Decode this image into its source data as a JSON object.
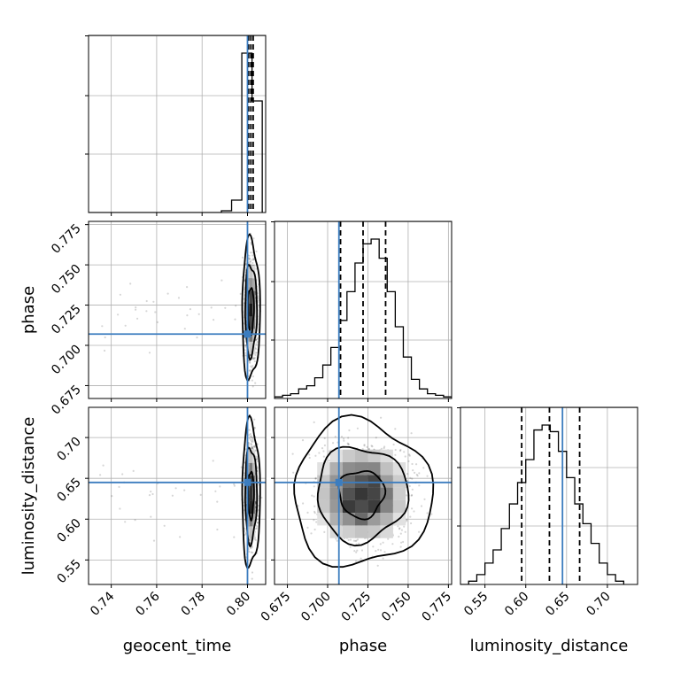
{
  "chart_data": {
    "type": "corner",
    "parameters": [
      "geocent_time",
      "phase",
      "luminosity_distance"
    ],
    "truth_color": "#3c7dbf",
    "truths": {
      "geocent_time": 0.8,
      "phase": 0.707,
      "luminosity_distance": 0.645
    },
    "axes": {
      "geocent_time": {
        "range": [
          0.73,
          0.808
        ],
        "ticks": [
          0.74,
          0.76,
          0.78,
          0.8
        ],
        "tick_labels": [
          "0.74",
          "0.76",
          "0.78",
          "0.80"
        ]
      },
      "phase": {
        "range": [
          0.667,
          0.777
        ],
        "ticks": [
          0.675,
          0.7,
          0.725,
          0.75,
          0.775
        ],
        "tick_labels": [
          "0.675",
          "0.700",
          "0.725",
          "0.750",
          "0.775"
        ]
      },
      "luminosity_distance": {
        "range": [
          0.52,
          0.737
        ],
        "ticks": [
          0.55,
          0.6,
          0.65,
          0.7
        ],
        "tick_labels": [
          "0.55",
          "0.60",
          "0.65",
          "0.70"
        ]
      }
    },
    "marginals": {
      "geocent_time": {
        "bin_edges": [
          0.73,
          0.7345,
          0.739,
          0.7435,
          0.748,
          0.7525,
          0.757,
          0.7615,
          0.766,
          0.7705,
          0.775,
          0.7795,
          0.784,
          0.7885,
          0.793,
          0.7975,
          0.802,
          0.8065
        ],
        "counts": [
          0,
          0,
          0,
          0,
          0,
          0,
          0,
          0,
          0,
          0,
          0,
          0,
          0,
          0.01,
          0.07,
          0.9,
          0.63
        ],
        "quantiles": [
          0.8005,
          0.8015,
          0.8025
        ]
      },
      "phase": {
        "bin_edges": [
          0.667,
          0.672,
          0.677,
          0.682,
          0.687,
          0.692,
          0.697,
          0.702,
          0.707,
          0.712,
          0.717,
          0.722,
          0.727,
          0.732,
          0.737,
          0.742,
          0.747,
          0.752,
          0.757,
          0.762,
          0.767,
          0.772,
          0.777
        ],
        "counts": [
          0.01,
          0.02,
          0.03,
          0.06,
          0.08,
          0.13,
          0.21,
          0.32,
          0.49,
          0.67,
          0.85,
          0.97,
          1.0,
          0.88,
          0.67,
          0.45,
          0.26,
          0.12,
          0.06,
          0.03,
          0.02,
          0.01
        ],
        "quantiles": [
          0.708,
          0.722,
          0.736
        ]
      },
      "luminosity_distance": {
        "bin_edges": [
          0.52,
          0.53,
          0.54,
          0.55,
          0.56,
          0.57,
          0.58,
          0.59,
          0.6,
          0.61,
          0.62,
          0.63,
          0.64,
          0.65,
          0.66,
          0.67,
          0.68,
          0.69,
          0.7,
          0.71,
          0.72
        ],
        "counts": [
          0.0,
          0.02,
          0.06,
          0.13,
          0.21,
          0.34,
          0.49,
          0.62,
          0.76,
          0.94,
          0.97,
          0.93,
          0.81,
          0.65,
          0.49,
          0.37,
          0.25,
          0.13,
          0.06,
          0.02
        ],
        "quantiles": [
          0.595,
          0.629,
          0.666
        ]
      }
    },
    "joint": {
      "phase_vs_geocent_time": {
        "center": [
          0.8015,
          0.722
        ],
        "sigma": [
          0.0013,
          0.0142
        ]
      },
      "luminosity_distance_vs_geocent_time": {
        "center": [
          0.8015,
          0.63
        ],
        "sigma": [
          0.0013,
          0.0292
        ]
      },
      "luminosity_distance_vs_phase": {
        "center": [
          0.721,
          0.631
        ],
        "sigma": [
          0.0142,
          0.0292
        ]
      }
    },
    "contour_levels": [
      0.39,
      0.86,
      0.99
    ],
    "grid": true
  }
}
